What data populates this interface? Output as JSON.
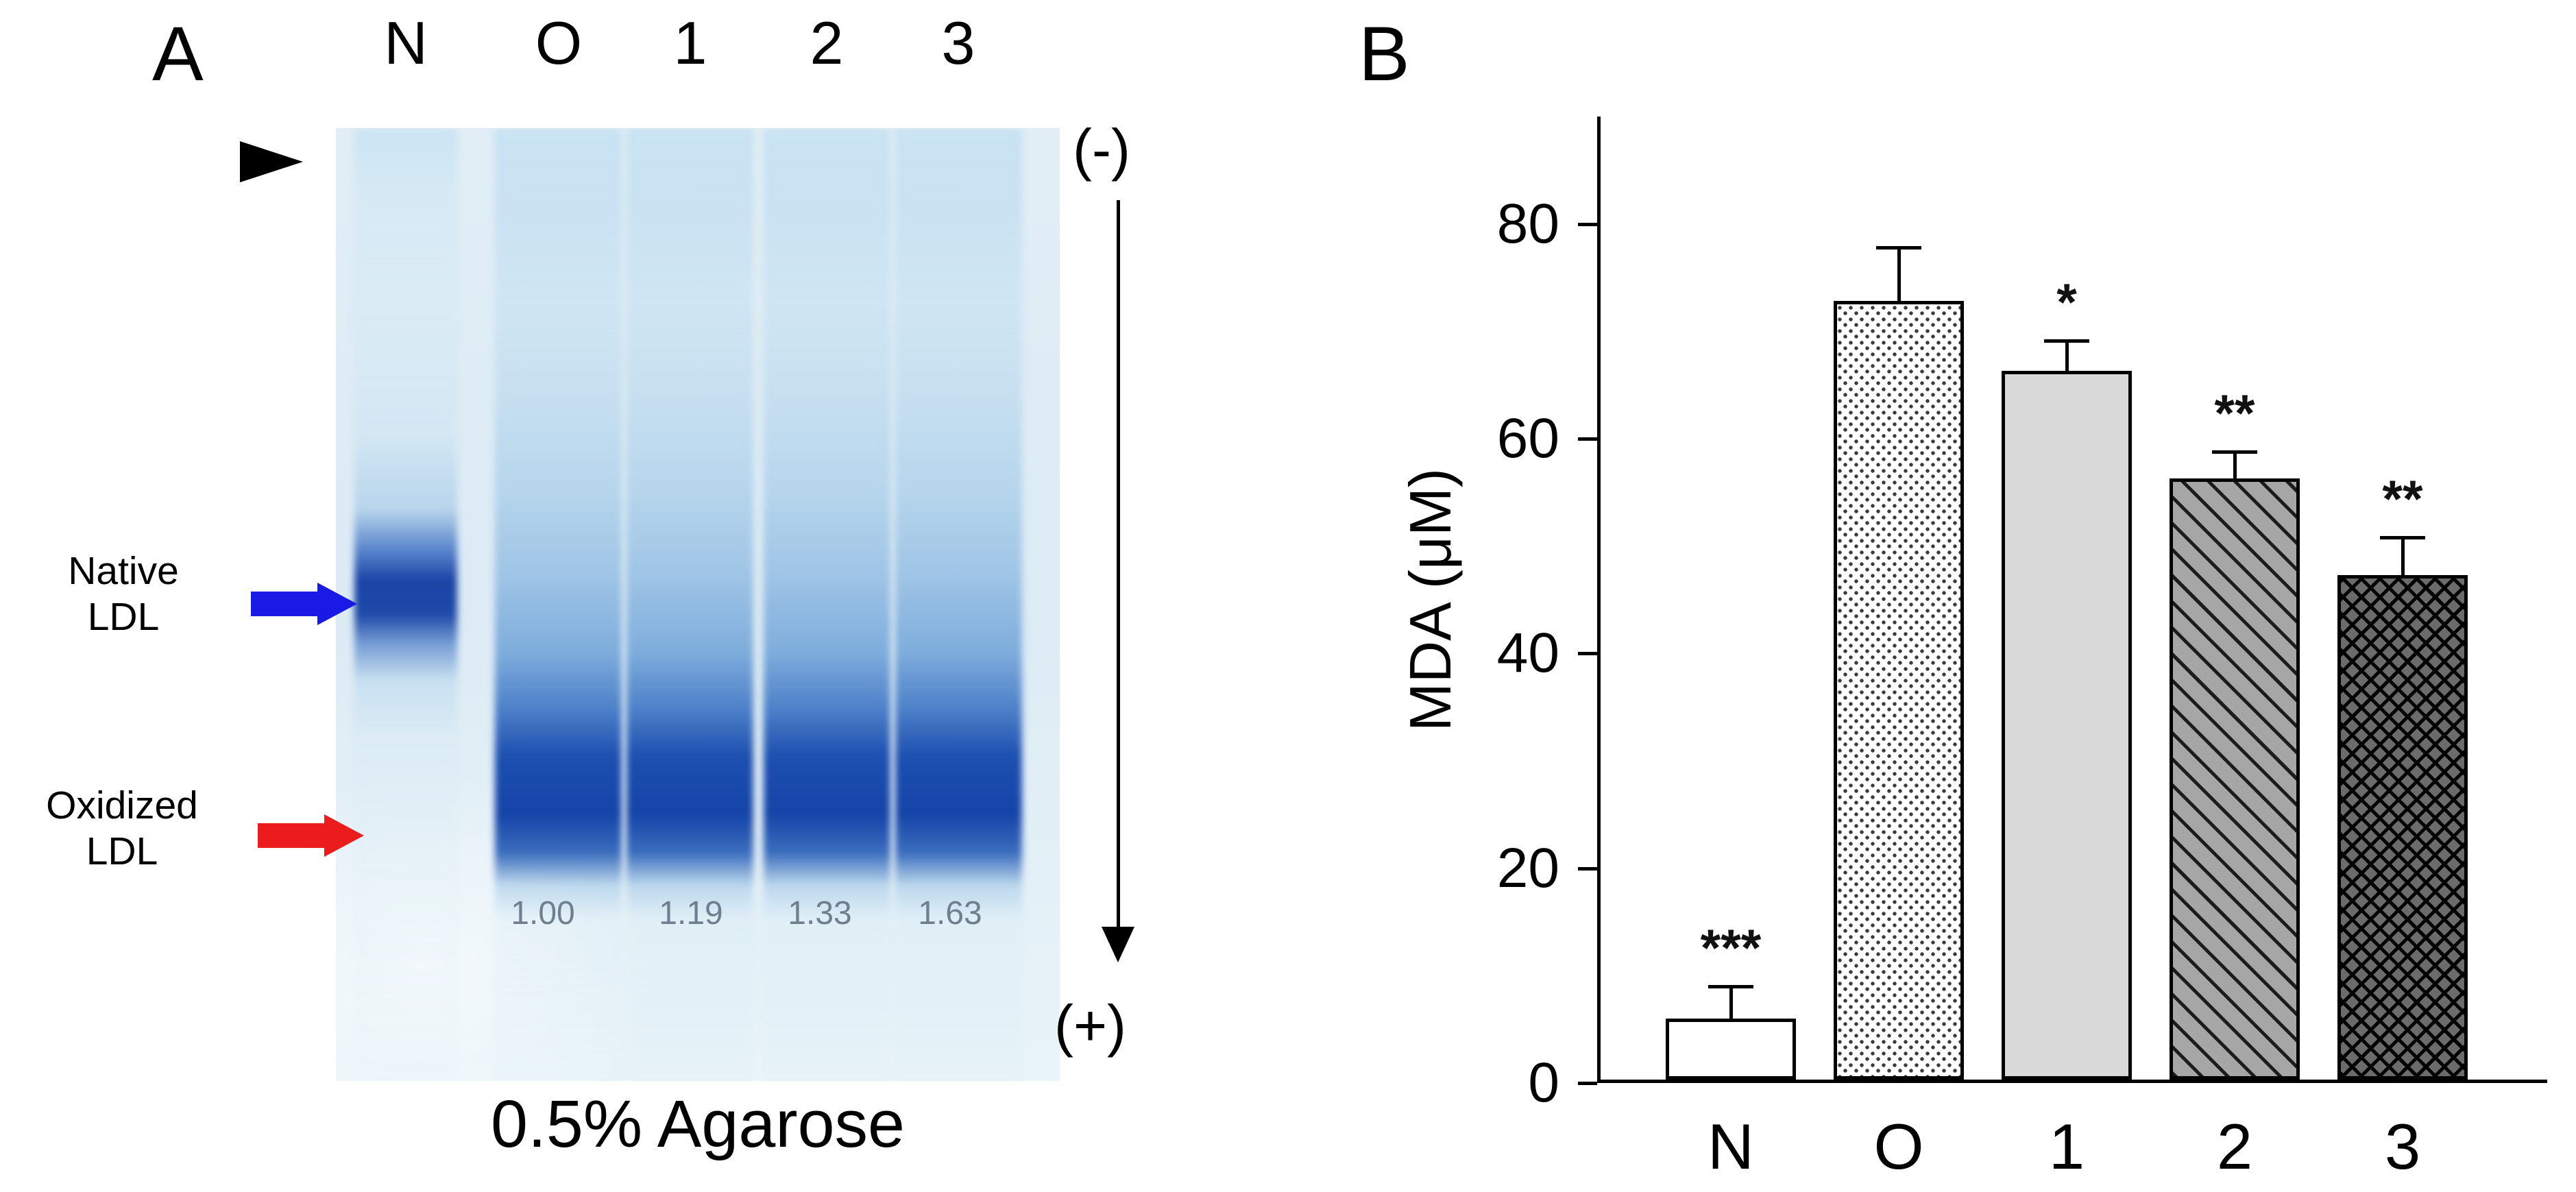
{
  "figure": {
    "panel_a_label": "A",
    "panel_b_label": "B"
  },
  "panel_a": {
    "lane_labels": [
      "N",
      "O",
      "1",
      "2",
      "3"
    ],
    "native_label": "Native\nLDL",
    "oxidized_label": "Oxidized\nLDL",
    "rem_values": [
      "1.00",
      "1.19",
      "1.33",
      "1.63"
    ],
    "electrode_negative": "(-)",
    "electrode_positive": "(+)",
    "caption": "0.5% Agarose",
    "colors": {
      "native_arrow": "#1a1ae6",
      "oxidized_arrow": "#ec1c1c",
      "gel_background": "#dfeef6",
      "band_blue": "#1442a6"
    }
  },
  "chart_data": {
    "type": "bar",
    "title": "",
    "xlabel": "",
    "ylabel": "MDA (μM)",
    "categories": [
      "N",
      "O",
      "1",
      "2",
      "3"
    ],
    "values": [
      5.7,
      72.5,
      66,
      56,
      47
    ],
    "errors": [
      3,
      5,
      2.8,
      2.5,
      3.5
    ],
    "significance": [
      "***",
      "",
      "*",
      "**",
      "**"
    ],
    "yticks": [
      0,
      20,
      40,
      60,
      80
    ],
    "ylim": [
      0,
      90
    ],
    "bar_styles": [
      "open",
      "stipple",
      "lightgray",
      "diagonal-hatch",
      "crosshatch"
    ],
    "grid": false,
    "legend": "none"
  }
}
